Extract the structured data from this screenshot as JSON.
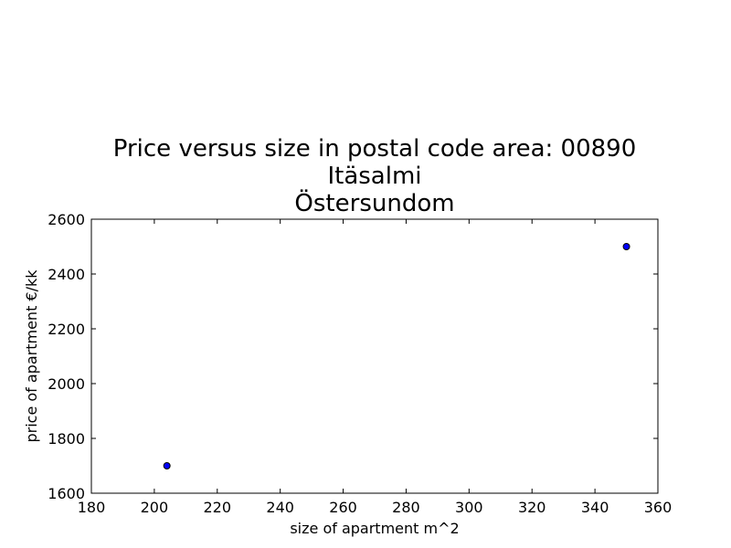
{
  "chart_data": {
    "type": "scatter",
    "title_lines": [
      "Price versus size in postal code area: 00890",
      "Itäsalmi",
      "Östersundom"
    ],
    "xlabel": "size of apartment m^2",
    "ylabel": "price of apartment €/kk",
    "xlim": [
      180,
      360
    ],
    "ylim": [
      1600,
      2600
    ],
    "xticks": [
      180,
      200,
      220,
      240,
      260,
      280,
      300,
      320,
      340,
      360
    ],
    "yticks": [
      1600,
      1800,
      2000,
      2200,
      2400,
      2600
    ],
    "grid": false,
    "points": [
      {
        "x": 204,
        "y": 1700
      },
      {
        "x": 350,
        "y": 2500
      }
    ],
    "marker_color": "#0000ff",
    "marker_edge_color": "#000000"
  }
}
